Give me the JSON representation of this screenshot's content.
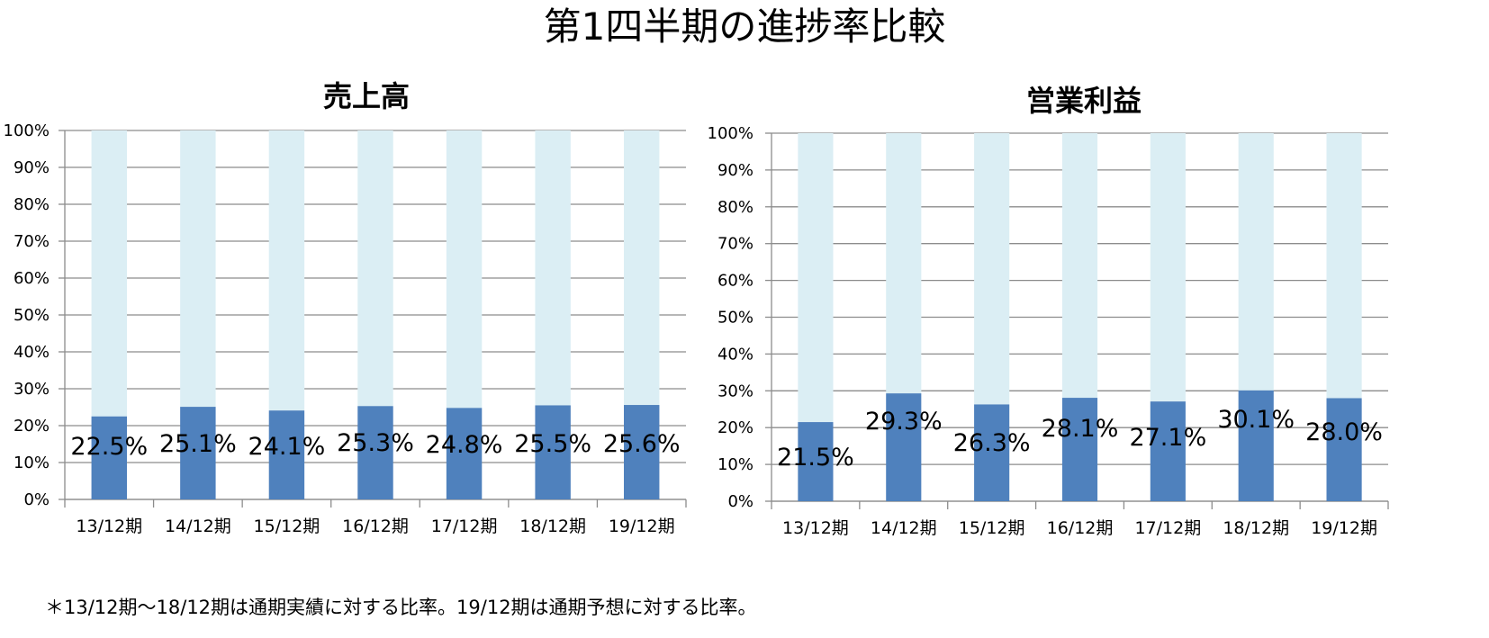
{
  "main_title": "第1四半期の進捗率比較",
  "footnote": "＊13/12期〜18/12期は通期実績に対する比率。19/12期は通期予想に対する比率。",
  "colors": {
    "value": "#4f81bd",
    "remainder": "#dbeef4",
    "axis": "#8c8c8c"
  },
  "chart_data": [
    {
      "type": "bar",
      "stacked": true,
      "title": "売上高",
      "categories": [
        "13/12期",
        "14/12期",
        "15/12期",
        "16/12期",
        "17/12期",
        "18/12期",
        "19/12期"
      ],
      "series": [
        {
          "values": [
            22.5,
            25.1,
            24.1,
            25.3,
            24.8,
            25.5,
            25.6
          ]
        },
        {
          "values": [
            77.5,
            74.9,
            75.9,
            74.7,
            75.2,
            74.5,
            74.4
          ]
        }
      ],
      "data_labels": [
        "22.5%",
        "25.1%",
        "24.1%",
        "25.3%",
        "24.8%",
        "25.5%",
        "25.6%"
      ],
      "y_ticks": [
        "0%",
        "10%",
        "20%",
        "30%",
        "40%",
        "50%",
        "60%",
        "70%",
        "80%",
        "90%",
        "100%"
      ],
      "ylim": [
        0,
        100
      ],
      "grid": true
    },
    {
      "type": "bar",
      "stacked": true,
      "title": "営業利益",
      "categories": [
        "13/12期",
        "14/12期",
        "15/12期",
        "16/12期",
        "17/12期",
        "18/12期",
        "19/12期"
      ],
      "series": [
        {
          "values": [
            21.5,
            29.3,
            26.3,
            28.1,
            27.1,
            30.1,
            28.0
          ]
        },
        {
          "values": [
            78.5,
            70.7,
            73.7,
            71.9,
            72.9,
            69.9,
            72.0
          ]
        }
      ],
      "data_labels": [
        "21.5%",
        "29.3%",
        "26.3%",
        "28.1%",
        "27.1%",
        "30.1%",
        "28.0%"
      ],
      "y_ticks": [
        "0%",
        "10%",
        "20%",
        "30%",
        "40%",
        "50%",
        "60%",
        "70%",
        "80%",
        "90%",
        "100%"
      ],
      "ylim": [
        0,
        100
      ],
      "grid": true
    }
  ]
}
